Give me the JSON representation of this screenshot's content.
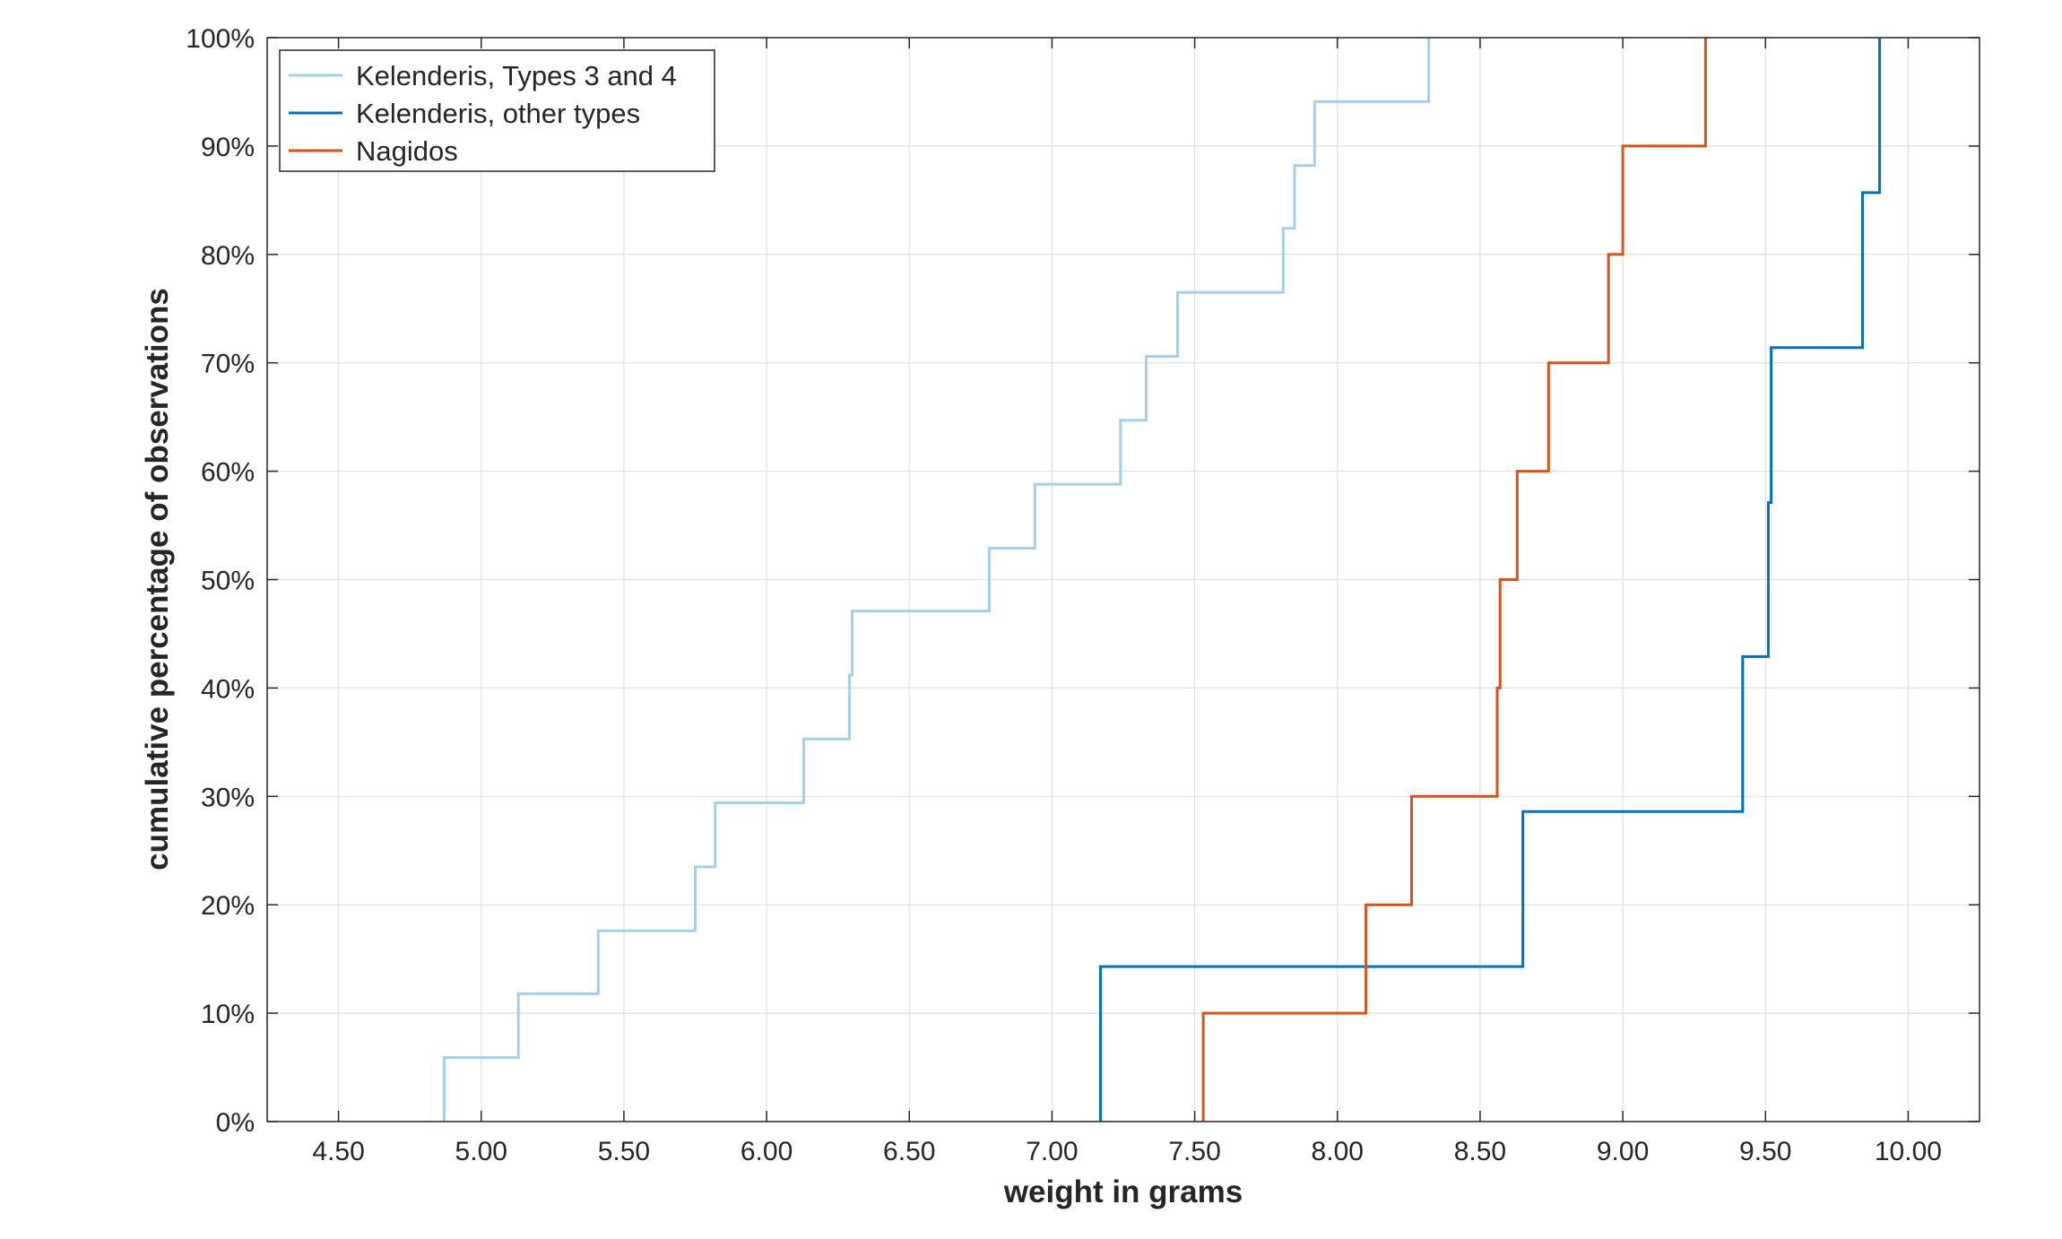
{
  "chart_data": {
    "type": "line",
    "title": "",
    "xlabel": "weight in grams",
    "ylabel": "cumulative percentage of observations",
    "xlim": [
      4.25,
      10.25
    ],
    "ylim": [
      0,
      100
    ],
    "x_ticks": [
      "4.50",
      "5.00",
      "5.50",
      "6.00",
      "6.50",
      "7.00",
      "7.50",
      "8.00",
      "8.50",
      "9.00",
      "9.50",
      "10.00"
    ],
    "y_ticks": [
      "0%",
      "10%",
      "20%",
      "30%",
      "40%",
      "50%",
      "60%",
      "70%",
      "80%",
      "90%",
      "100%"
    ],
    "grid": true,
    "legend_position": "top-left",
    "series": [
      {
        "name": "Kelenderis, Types 3 and 4",
        "color": "#a6cfe8",
        "x": [
          4.87,
          5.13,
          5.41,
          5.75,
          5.82,
          6.13,
          6.29,
          6.3,
          6.78,
          6.94,
          7.24,
          7.33,
          7.44,
          7.81,
          7.85,
          7.92,
          8.32
        ],
        "y": [
          5.9,
          11.8,
          17.6,
          23.5,
          29.4,
          35.3,
          41.2,
          47.1,
          52.9,
          58.8,
          64.7,
          70.6,
          76.5,
          82.4,
          88.2,
          94.1,
          100
        ]
      },
      {
        "name": "Kelenderis, other types",
        "color": "#0072bd",
        "x": [
          7.17,
          8.65,
          9.42,
          9.51,
          9.52,
          9.84,
          9.9
        ],
        "y": [
          14.3,
          28.6,
          42.9,
          57.1,
          71.4,
          85.7,
          100
        ]
      },
      {
        "name": "Nagidos",
        "color": "#d95319",
        "x": [
          7.53,
          8.1,
          8.26,
          8.56,
          8.57,
          8.63,
          8.74,
          8.95,
          9.0,
          9.29
        ],
        "y": [
          10,
          20,
          30,
          40,
          50,
          60,
          70,
          80,
          90,
          100
        ]
      }
    ]
  }
}
